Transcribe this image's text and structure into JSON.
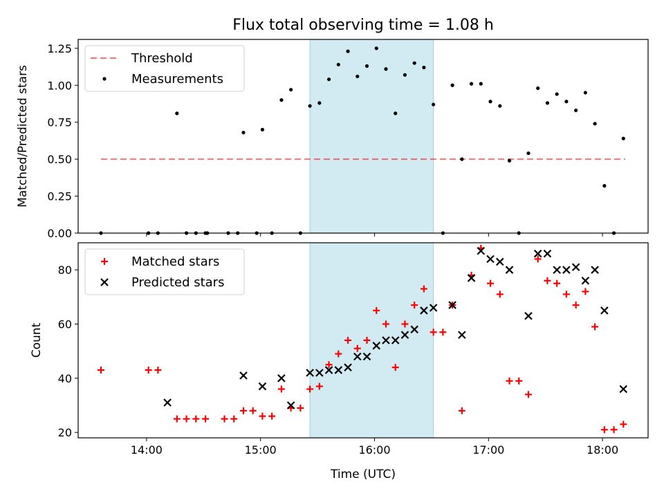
{
  "chart_data": [
    {
      "type": "scatter",
      "title": "Flux total observing time = 1.08 h",
      "ylabel": "Matched/Predicted stars",
      "xlabel": "",
      "xlim": [
        "13:24",
        "18:24"
      ],
      "ylim": [
        0,
        1.31
      ],
      "x_ticks": [
        "14:00",
        "15:00",
        "16:00",
        "17:00",
        "18:00"
      ],
      "y_ticks": [
        "0.00",
        "0.25",
        "0.50",
        "0.75",
        "1.00",
        "1.25"
      ],
      "highlight_span": [
        "15:26",
        "16:31"
      ],
      "highlight_color": "#add8e6",
      "legend_position": "top-left",
      "series": [
        {
          "name": "Threshold",
          "kind": "line",
          "style": "dashed",
          "color": "#ff0000",
          "x": [
            "13:36",
            "18:12"
          ],
          "y": [
            0.5,
            0.5
          ]
        },
        {
          "name": "Measurements",
          "kind": "points",
          "color": "#000000",
          "x": [
            "13:36",
            "14:01",
            "14:06",
            "14:16",
            "14:21",
            "14:26",
            "14:31",
            "14:32",
            "14:43",
            "14:48",
            "14:51",
            "14:58",
            "15:01",
            "15:06",
            "15:11",
            "15:16",
            "15:21",
            "15:26",
            "15:31",
            "15:36",
            "15:41",
            "15:46",
            "15:51",
            "15:56",
            "16:01",
            "16:06",
            "16:11",
            "16:16",
            "16:21",
            "16:26",
            "16:31",
            "16:36",
            "16:41",
            "16:46",
            "16:51",
            "16:56",
            "17:01",
            "17:06",
            "17:11",
            "17:16",
            "17:21",
            "17:26",
            "17:31",
            "17:36",
            "17:41",
            "17:46",
            "17:51",
            "17:56",
            "18:01",
            "18:06",
            "18:11"
          ],
          "y": [
            0.0,
            0.0,
            0.0,
            0.81,
            0.0,
            0.0,
            0.0,
            0.0,
            0.0,
            0.0,
            0.68,
            0.0,
            0.7,
            0.0,
            0.9,
            0.97,
            0.0,
            0.86,
            0.88,
            1.04,
            1.14,
            1.23,
            1.06,
            1.13,
            1.25,
            1.11,
            0.81,
            1.07,
            1.15,
            1.12,
            0.87,
            0.0,
            1.0,
            0.5,
            1.01,
            1.01,
            0.89,
            0.86,
            0.49,
            0.0,
            0.54,
            0.98,
            0.88,
            0.94,
            0.89,
            0.83,
            0.95,
            0.74,
            0.32,
            0.0,
            0.64
          ]
        }
      ]
    },
    {
      "type": "scatter",
      "title": "",
      "ylabel": "Count",
      "xlabel": "Time (UTC)",
      "xlim": [
        "13:24",
        "18:24"
      ],
      "ylim": [
        18,
        90
      ],
      "x_ticks": [
        "14:00",
        "15:00",
        "16:00",
        "17:00",
        "18:00"
      ],
      "y_ticks": [
        "20",
        "40",
        "60",
        "80"
      ],
      "highlight_span": [
        "15:26",
        "16:31"
      ],
      "highlight_color": "#add8e6",
      "legend_position": "top-left",
      "series": [
        {
          "name": "Matched stars",
          "marker": "plus",
          "color": "#ff0000",
          "x": [
            "13:36",
            "14:01",
            "14:06",
            "14:11",
            "14:16",
            "14:21",
            "14:26",
            "14:31",
            "14:36",
            "14:41",
            "14:46",
            "14:51",
            "14:56",
            "15:01",
            "15:06",
            "15:11",
            "15:16",
            "15:21",
            "15:26",
            "15:31",
            "15:36",
            "15:41",
            "15:46",
            "15:51",
            "15:56",
            "16:01",
            "16:06",
            "16:11",
            "16:16",
            "16:21",
            "16:26",
            "16:31",
            "16:36",
            "16:41",
            "16:46",
            "16:51",
            "16:56",
            "17:01",
            "17:06",
            "17:11",
            "17:16",
            "17:21",
            "17:26",
            "17:31",
            "17:36",
            "17:41",
            "17:46",
            "17:51",
            "17:56",
            "18:01",
            "18:06",
            "18:11"
          ],
          "y": [
            43,
            43,
            43,
            null,
            25,
            25,
            25,
            25,
            null,
            25,
            25,
            28,
            28,
            26,
            26,
            36,
            29,
            29,
            36,
            37,
            45,
            49,
            54,
            51,
            54,
            65,
            60,
            44,
            60,
            67,
            73,
            57,
            57,
            67,
            28,
            78,
            88,
            75,
            71,
            39,
            39,
            34,
            84,
            76,
            75,
            71,
            67,
            72,
            59,
            21,
            21,
            23
          ]
        },
        {
          "name": "Predicted stars",
          "marker": "x",
          "color": "#000000",
          "x": [
            "14:11",
            "14:51",
            "15:01",
            "15:11",
            "15:16",
            "15:26",
            "15:31",
            "15:36",
            "15:41",
            "15:46",
            "15:51",
            "15:56",
            "16:01",
            "16:06",
            "16:11",
            "16:16",
            "16:21",
            "16:26",
            "16:31",
            "16:36",
            "16:41",
            "16:46",
            "16:51",
            "16:56",
            "17:01",
            "17:06",
            "17:11",
            "17:16",
            "17:21",
            "17:26",
            "17:31",
            "17:36",
            "17:41",
            "17:46",
            "17:51",
            "17:56",
            "18:01",
            "18:06",
            "18:11"
          ],
          "y": [
            31,
            41,
            37,
            40,
            30,
            42,
            42,
            43,
            43,
            44,
            48,
            48,
            52,
            54,
            54,
            56,
            58,
            65,
            66,
            null,
            67,
            56,
            77,
            87,
            84,
            83,
            80,
            null,
            63,
            86,
            86,
            80,
            80,
            81,
            76,
            80,
            65,
            null,
            36
          ]
        }
      ]
    }
  ]
}
